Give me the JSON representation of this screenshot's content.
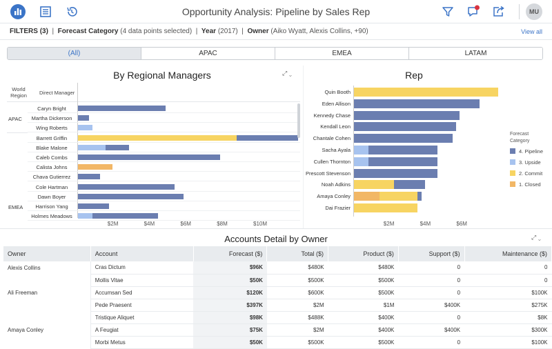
{
  "app": {
    "title": "Opportunity Analysis: Pipeline by Sales Rep",
    "avatar_initials": "MU"
  },
  "colors": {
    "pipeline": "#6b7eb0",
    "upside": "#a7c3ef",
    "commit": "#f7d462",
    "closed": "#f2b766",
    "accent": "#3b74c7"
  },
  "icons": {
    "left": [
      "bar-chart-icon",
      "list-icon",
      "history-icon"
    ],
    "right": [
      "filter-icon",
      "comment-icon",
      "share-icon"
    ]
  },
  "filters": {
    "label": "FILTERS (3)",
    "f1_name": "Forecast Category",
    "f1_value": "(4 data points selected)",
    "f2_name": "Year",
    "f2_value": "(2017)",
    "f3_name": "Owner",
    "f3_value": "(Aiko Wyatt, Alexis Collins, +90)",
    "view_all": "View all"
  },
  "tabs": [
    "(All)",
    "APAC",
    "EMEA",
    "LATAM"
  ],
  "left_chart": {
    "title": "By Regional Managers",
    "col1": "World Region",
    "col2": "Direct Manager",
    "regions": [
      {
        "label": "APAC",
        "row": 1
      },
      {
        "label": "EMEA",
        "row": 10
      }
    ],
    "x_ticks": [
      "$2M",
      "$4M",
      "$6M",
      "$8M",
      "$10M"
    ]
  },
  "right_chart": {
    "title": "Rep",
    "x_ticks": [
      "$2M",
      "$4M",
      "$6M"
    ],
    "legend_title": "Forecast Category",
    "legend": [
      {
        "label": "4. Pipeline",
        "key": "pipeline"
      },
      {
        "label": "3. Upside",
        "key": "upside"
      },
      {
        "label": "2. Commit",
        "key": "commit"
      },
      {
        "label": "1. Closed",
        "key": "closed"
      }
    ]
  },
  "chart_data": [
    {
      "type": "bar",
      "title": "By Regional Managers",
      "orientation": "horizontal",
      "stacked": true,
      "unit": "$M",
      "categories": [
        "Caryn Bright",
        "Martha Dickerson",
        "Wing Roberts",
        "Barrett Griffin",
        "Blake Malone",
        "Caleb Combs",
        "Calista Johns",
        "Chava Gutierrez",
        "Cole Hartman",
        "Dawn Boyer",
        "Harrison Yang",
        "Holmes Meadows"
      ],
      "series": [
        {
          "name": "1. Closed",
          "values": [
            0,
            0,
            0,
            0,
            0,
            0,
            1.9,
            0,
            0,
            0,
            0,
            0
          ]
        },
        {
          "name": "2. Commit",
          "values": [
            0,
            0,
            0,
            8.7,
            0,
            0,
            0,
            0,
            0,
            0,
            0,
            0
          ]
        },
        {
          "name": "3. Upside",
          "values": [
            0,
            0,
            0.8,
            0,
            1.5,
            0,
            0,
            0,
            0,
            0,
            0,
            0.8
          ]
        },
        {
          "name": "4. Pipeline",
          "values": [
            4.8,
            0.6,
            0,
            3.4,
            1.3,
            7.8,
            0,
            1.2,
            5.3,
            5.8,
            1.7,
            3.6
          ]
        }
      ],
      "xlim": [
        0,
        12
      ]
    },
    {
      "type": "bar",
      "title": "Rep",
      "orientation": "horizontal",
      "stacked": true,
      "unit": "$M",
      "categories": [
        "Quin Booth",
        "Eden Allison",
        "Kennedy Chase",
        "Kendall Leon",
        "Chantale Cohen",
        "Sacha Ayala",
        "Cullen Thornton",
        "Prescott Stevenson",
        "Noah Adkins",
        "Amaya Conley",
        "Dai Frazier"
      ],
      "series": [
        {
          "name": "1. Closed",
          "values": [
            0,
            0,
            0,
            0,
            0,
            0,
            0,
            0,
            0,
            1.4,
            0
          ]
        },
        {
          "name": "2. Commit",
          "values": [
            7.9,
            0,
            0,
            0,
            0,
            0,
            0,
            0,
            2.2,
            2.1,
            3.5
          ]
        },
        {
          "name": "3. Upside",
          "values": [
            0,
            0,
            0,
            0,
            0,
            0.8,
            0.8,
            0,
            0,
            0,
            0
          ]
        },
        {
          "name": "4. Pipeline",
          "values": [
            0,
            6.9,
            5.8,
            5.6,
            5.4,
            3.8,
            3.8,
            4.6,
            1.7,
            0.2,
            0
          ]
        }
      ],
      "xlim": [
        0,
        8
      ]
    }
  ],
  "table": {
    "title": "Accounts Detail by Owner",
    "columns": [
      "Owner",
      "Account",
      "Forecast ($)",
      "Total ($)",
      "Product ($)",
      "Support ($)",
      "Maintenance ($)"
    ],
    "rows": [
      [
        "Alexis Collins",
        "Cras Dictum",
        "$96K",
        "$480K",
        "$480K",
        "0",
        "0"
      ],
      [
        "",
        "Mollis Vitae",
        "$50K",
        "$500K",
        "$500K",
        "0",
        "0"
      ],
      [
        "Ali Freeman",
        "Accumsan Sed",
        "$120K",
        "$600K",
        "$500K",
        "0",
        "$100K"
      ],
      [
        "",
        "Pede Praesent",
        "$397K",
        "$2M",
        "$1M",
        "$400K",
        "$275K"
      ],
      [
        "",
        "Tristique Aliquet",
        "$98K",
        "$488K",
        "$400K",
        "0",
        "$8K"
      ],
      [
        "Amaya Conley",
        "A Feugiat",
        "$75K",
        "$2M",
        "$400K",
        "$400K",
        "$300K"
      ],
      [
        "",
        "Morbi Metus",
        "$50K",
        "$500K",
        "$500K",
        "0",
        "$100K"
      ]
    ]
  }
}
